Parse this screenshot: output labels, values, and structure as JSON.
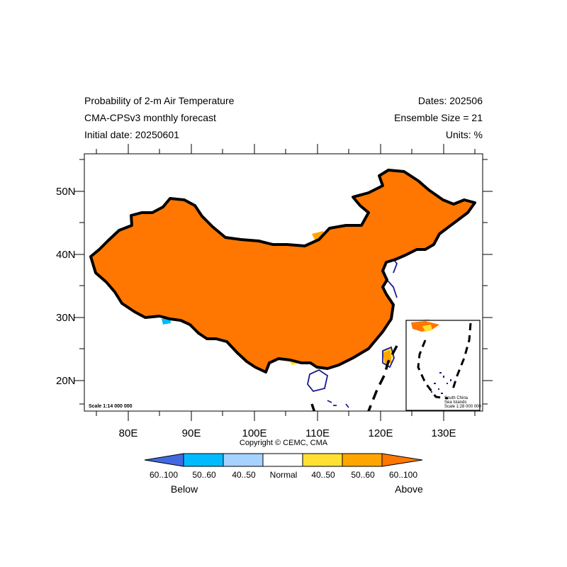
{
  "header": {
    "title_line1": "Probability of 2-m Air Temperature",
    "title_line2": "CMA-CPSv3 monthly forecast",
    "title_line3": "Initial date: 20250601",
    "dates": "Dates: 202506",
    "ensemble": "Ensemble Size = 21",
    "units": "Units: %"
  },
  "map": {
    "lat_labels": [
      "50N",
      "40N",
      "30N",
      "20N"
    ],
    "lon_labels": [
      "80E",
      "90E",
      "100E",
      "110E",
      "120E",
      "130E"
    ],
    "scale_main": "Scale 1:14 000 000",
    "inset_title_1": "South China",
    "inset_title_2": "Sea Islands",
    "inset_scale": "Scale 1:28 000 000",
    "copyright": "Copyright © CEMC, CMA",
    "colors": {
      "above_60_100": "#FF7700",
      "above_50_60": "#FFA500",
      "above_40_50": "#FFE033",
      "normal": "#FFFFFF",
      "below_40_50": "#A6D2FF",
      "below_50_60": "#00BBFF",
      "below_60_100": "#4169E1"
    }
  },
  "colorbar": {
    "labels": [
      "60..100",
      "50..60",
      "40..50",
      "Normal",
      "40..50",
      "50..60",
      "60..100"
    ],
    "below": "Below",
    "above": "Above"
  }
}
